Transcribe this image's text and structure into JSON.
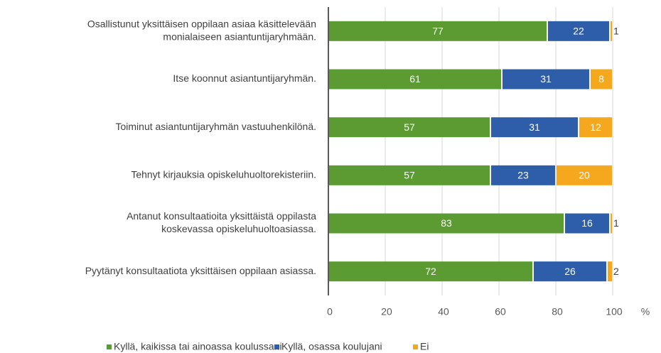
{
  "chart_data": {
    "type": "stacked_barh",
    "categories": [
      [
        "Osallistunut yksittäisen oppilaan asiaa käsittelevään",
        "monialaiseen asiantuntijaryhmään."
      ],
      [
        "Itse koonnut asiantuntijaryhmän."
      ],
      [
        "Toiminut asiantuntijaryhmän vastuuhenkilönä."
      ],
      [
        "Tehnyt kirjauksia opiskeluhuoltorekisteriin."
      ],
      [
        "Antanut konsultaatioita yksittäistä oppilasta",
        "koskevassa opiskeluhuoltoasiassa."
      ],
      [
        "Pyytänyt konsultaatiota yksittäisen oppilaan asiassa."
      ]
    ],
    "series": [
      {
        "name": "Kyllä, kaikissa tai ainoassa koulussani",
        "color": "#5b9b32",
        "values": [
          77,
          61,
          57,
          57,
          83,
          72
        ]
      },
      {
        "name": "Kyllä, osassa koulujani",
        "color": "#2e5eaa",
        "values": [
          22,
          31,
          31,
          23,
          16,
          26
        ]
      },
      {
        "name": "Ei",
        "color": "#f5a81d",
        "values": [
          1,
          8,
          12,
          20,
          1,
          2
        ]
      }
    ],
    "xlim": [
      0,
      100
    ],
    "xticks": [
      0,
      20,
      40,
      60,
      80,
      100
    ],
    "xlabel": "%",
    "grid": true,
    "legend": "bottom"
  }
}
